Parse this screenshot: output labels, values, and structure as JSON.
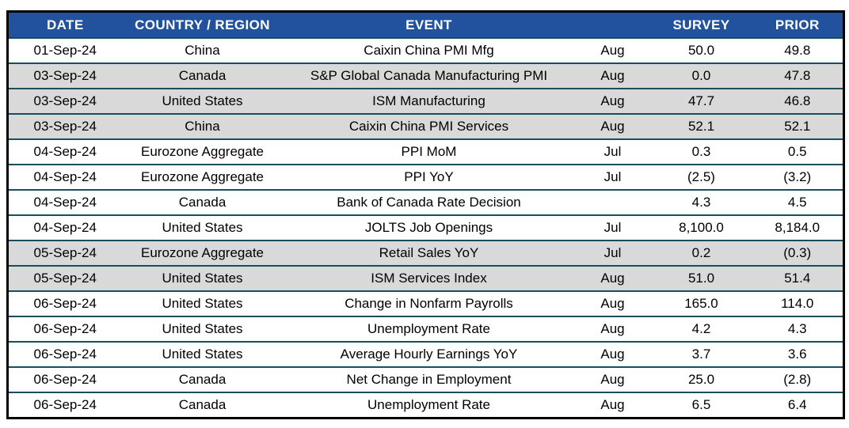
{
  "chart_data": {
    "type": "table",
    "columns": [
      {
        "key": "date",
        "label": "DATE"
      },
      {
        "key": "country",
        "label": "COUNTRY / REGION"
      },
      {
        "key": "event",
        "label": "EVENT"
      },
      {
        "key": "period",
        "label": ""
      },
      {
        "key": "survey",
        "label": "SURVEY"
      },
      {
        "key": "prior",
        "label": "PRIOR"
      }
    ],
    "rows": [
      {
        "date": "01-Sep-24",
        "country": "China",
        "event": "Caixin China PMI Mfg",
        "period": "Aug",
        "survey": "50.0",
        "prior": "49.8",
        "shaded": false
      },
      {
        "date": "03-Sep-24",
        "country": "Canada",
        "event": "S&P Global Canada Manufacturing PMI",
        "period": "Aug",
        "survey": "0.0",
        "prior": "47.8",
        "shaded": true
      },
      {
        "date": "03-Sep-24",
        "country": "United States",
        "event": "ISM Manufacturing",
        "period": "Aug",
        "survey": "47.7",
        "prior": "46.8",
        "shaded": true
      },
      {
        "date": "03-Sep-24",
        "country": "China",
        "event": "Caixin China PMI Services",
        "period": "Aug",
        "survey": "52.1",
        "prior": "52.1",
        "shaded": true
      },
      {
        "date": "04-Sep-24",
        "country": "Eurozone Aggregate",
        "event": "PPI MoM",
        "period": "Jul",
        "survey": "0.3",
        "prior": "0.5",
        "shaded": false
      },
      {
        "date": "04-Sep-24",
        "country": "Eurozone Aggregate",
        "event": "PPI YoY",
        "period": "Jul",
        "survey": "(2.5)",
        "prior": "(3.2)",
        "shaded": false
      },
      {
        "date": "04-Sep-24",
        "country": "Canada",
        "event": "Bank of Canada Rate Decision",
        "period": "",
        "survey": "4.3",
        "prior": "4.5",
        "shaded": false
      },
      {
        "date": "04-Sep-24",
        "country": "United States",
        "event": "JOLTS Job Openings",
        "period": "Jul",
        "survey": "8,100.0",
        "prior": "8,184.0",
        "shaded": false
      },
      {
        "date": "05-Sep-24",
        "country": "Eurozone Aggregate",
        "event": "Retail Sales YoY",
        "period": "Jul",
        "survey": "0.2",
        "prior": "(0.3)",
        "shaded": true
      },
      {
        "date": "05-Sep-24",
        "country": "United States",
        "event": "ISM Services Index",
        "period": "Aug",
        "survey": "51.0",
        "prior": "51.4",
        "shaded": true
      },
      {
        "date": "06-Sep-24",
        "country": "United States",
        "event": "Change in Nonfarm Payrolls",
        "period": "Aug",
        "survey": "165.0",
        "prior": "114.0",
        "shaded": false
      },
      {
        "date": "06-Sep-24",
        "country": "United States",
        "event": "Unemployment Rate",
        "period": "Aug",
        "survey": "4.2",
        "prior": "4.3",
        "shaded": false
      },
      {
        "date": "06-Sep-24",
        "country": "United States",
        "event": "Average Hourly Earnings YoY",
        "period": "Aug",
        "survey": "3.7",
        "prior": "3.6",
        "shaded": false
      },
      {
        "date": "06-Sep-24",
        "country": "Canada",
        "event": "Net Change in Employment",
        "period": "Aug",
        "survey": "25.0",
        "prior": "(2.8)",
        "shaded": false
      },
      {
        "date": "06-Sep-24",
        "country": "Canada",
        "event": "Unemployment Rate",
        "period": "Aug",
        "survey": "6.5",
        "prior": "6.4",
        "shaded": false
      }
    ]
  },
  "style": {
    "header_bg": "#22529E",
    "header_text": "#FFFFFF",
    "row_bg": "#FFFFFF",
    "row_alt_bg": "#D9D9D9",
    "divider_color": "#1C4B5E",
    "outer_border": "#000000",
    "text_color": "#000000"
  }
}
